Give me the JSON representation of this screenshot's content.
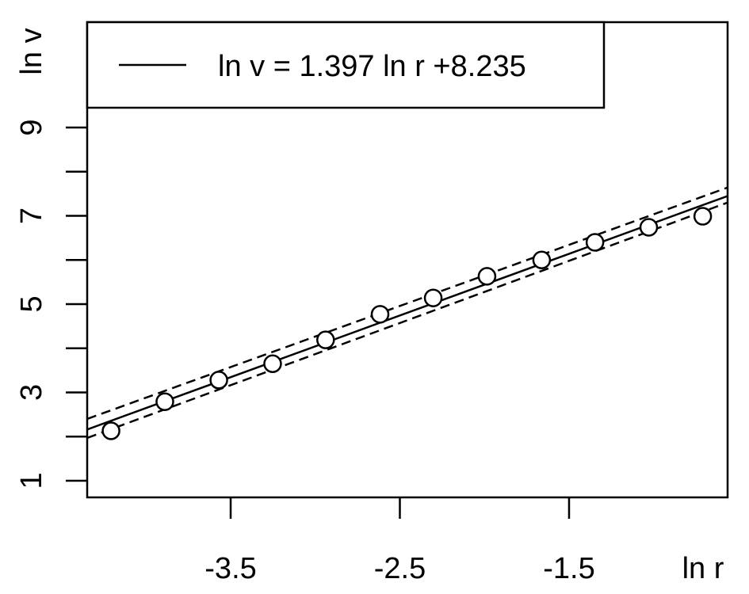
{
  "chart_data": {
    "type": "scatter",
    "x_label": "ln r",
    "y_label": "ln v",
    "x": [
      -4.207,
      -3.889,
      -3.57,
      -3.252,
      -2.939,
      -2.617,
      -2.303,
      -1.985,
      -1.662,
      -1.347,
      -1.029,
      -0.71
    ],
    "values": [
      2.13,
      2.79,
      3.28,
      3.65,
      4.19,
      4.77,
      5.14,
      5.63,
      6.0,
      6.4,
      6.74,
      6.99
    ],
    "color": "#000000",
    "xlim": [
      -4.348,
      -0.563
    ],
    "ylim": [
      0.623,
      11.386
    ],
    "xticks": [
      -3.5,
      -2.5,
      -1.5
    ],
    "yticks": [
      1,
      3,
      5,
      7,
      9
    ],
    "yticks_minor": [
      2,
      4,
      6,
      8
    ],
    "fit": {
      "slope": 1.397,
      "intercept": 8.235,
      "legend": "ln v = 1.397 ln r +8.235"
    },
    "bands": [
      {
        "x": [
          -4.348,
          -0.563
        ],
        "values": [
          2.4,
          7.64
        ]
      },
      {
        "x": [
          -4.348,
          -0.563
        ],
        "values": [
          1.97,
          7.3
        ]
      }
    ]
  }
}
